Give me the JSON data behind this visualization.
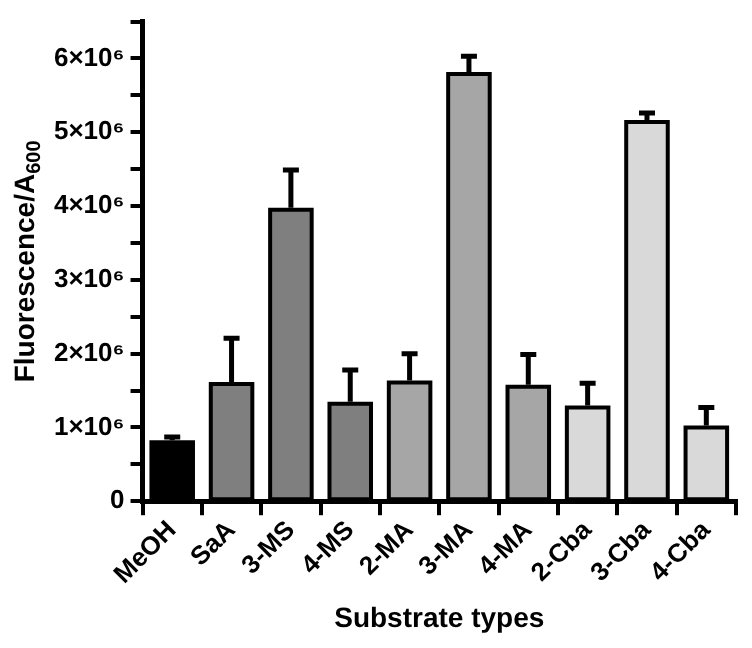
{
  "chart_data": {
    "type": "bar",
    "xlabel": "Substrate types",
    "ylabel": "Fluorescence/A$_{600}$",
    "categories": [
      "MeOH",
      "SaA",
      "3-MS",
      "4-MS",
      "2-MA",
      "3-MA",
      "4-MA",
      "2-Cba",
      "3-Cba",
      "4-Cba"
    ],
    "values": [
      800000,
      1590000,
      3950000,
      1320000,
      1610000,
      5790000,
      1550000,
      1270000,
      5140000,
      1000000
    ],
    "errors": [
      [
        800000,
        870000
      ],
      [
        1590000,
        2210000
      ],
      [
        3950000,
        4490000
      ],
      [
        1320000,
        1780000
      ],
      [
        1610000,
        2000000
      ],
      [
        5790000,
        6030000
      ],
      [
        1550000,
        1990000
      ],
      [
        1270000,
        1600000
      ],
      [
        5140000,
        5260000
      ],
      [
        1000000,
        1270000
      ]
    ],
    "colors": [
      "#000000",
      "#7f7f7f",
      "#7f7f7f",
      "#7f7f7f",
      "#a6a6a6",
      "#a6a6a6",
      "#a6a6a6",
      "#d9d9d9",
      "#d9d9d9",
      "#d9d9d9"
    ],
    "ylim": [
      0,
      6500000
    ],
    "yticks": [
      0,
      {
        "value": 500000,
        "label": null
      },
      {
        "value": 1000000,
        "label": "1×10⁶"
      },
      {
        "value": 1500000,
        "label": null
      },
      {
        "value": 2000000,
        "label": "2×10⁶"
      },
      {
        "value": 2500000,
        "label": null
      },
      {
        "value": 3000000,
        "label": "3×10⁶"
      },
      {
        "value": 3500000,
        "label": null
      },
      {
        "value": 4000000,
        "label": "4×10⁶"
      },
      {
        "value": 4500000,
        "label": null
      },
      {
        "value": 5000000,
        "label": "5×10⁶"
      },
      {
        "value": 5500000,
        "label": null
      },
      {
        "value": 6000000,
        "label": "6×10⁶"
      },
      {
        "value": 6500000,
        "label": null
      }
    ],
    "grid": false,
    "legend": false
  }
}
